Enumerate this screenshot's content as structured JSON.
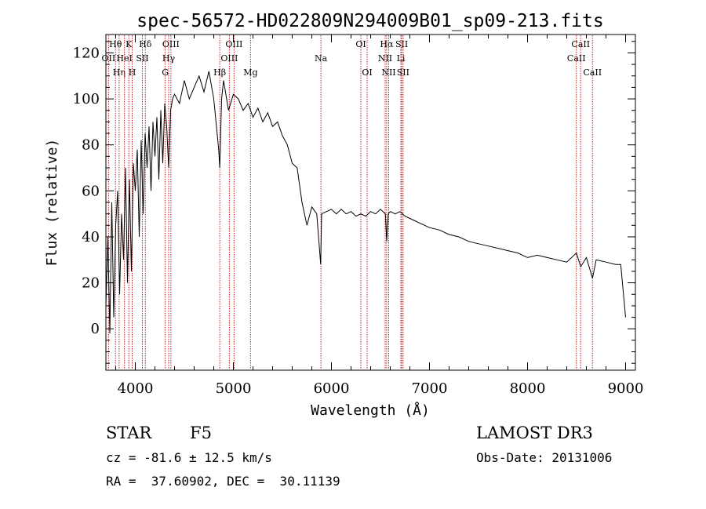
{
  "chart_data": {
    "type": "line",
    "title": "spec-56572-HD022809N294009B01_sp09-213.fits",
    "xlabel": "Wavelength (Å)",
    "ylabel": "Flux (relative)",
    "xlim": [
      3700,
      9100
    ],
    "ylim": [
      -18,
      128
    ],
    "xticks": [
      4000,
      5000,
      6000,
      7000,
      8000,
      9000
    ],
    "yticks": [
      0,
      20,
      40,
      60,
      80,
      100,
      120
    ],
    "xtick_labels": [
      "4000",
      "5000",
      "6000",
      "7000",
      "8000",
      "9000"
    ],
    "ytick_labels": [
      "0",
      "20",
      "40",
      "60",
      "80",
      "100",
      "120"
    ],
    "series": [
      {
        "name": "spectrum",
        "x": [
          3700,
          3720,
          3740,
          3760,
          3780,
          3800,
          3820,
          3840,
          3860,
          3880,
          3900,
          3920,
          3940,
          3960,
          3980,
          4000,
          4020,
          4040,
          4060,
          4080,
          4100,
          4120,
          4140,
          4160,
          4180,
          4200,
          4220,
          4240,
          4260,
          4280,
          4300,
          4320,
          4340,
          4360,
          4380,
          4400,
          4450,
          4500,
          4550,
          4600,
          4650,
          4700,
          4750,
          4800,
          4850,
          4861,
          4880,
          4900,
          4950,
          5000,
          5050,
          5100,
          5150,
          5200,
          5250,
          5300,
          5350,
          5400,
          5450,
          5500,
          5550,
          5600,
          5650,
          5700,
          5750,
          5800,
          5850,
          5890,
          5900,
          5950,
          6000,
          6050,
          6100,
          6150,
          6200,
          6250,
          6300,
          6350,
          6400,
          6450,
          6500,
          6550,
          6563,
          6580,
          6600,
          6650,
          6700,
          6750,
          6800,
          6850,
          6900,
          6950,
          7000,
          7100,
          7200,
          7300,
          7400,
          7500,
          7600,
          7700,
          7800,
          7900,
          8000,
          8100,
          8200,
          8300,
          8400,
          8498,
          8542,
          8600,
          8662,
          8700,
          8800,
          8900,
          8950,
          9000
        ],
        "values": [
          10,
          40,
          -2,
          55,
          5,
          45,
          60,
          15,
          50,
          30,
          70,
          20,
          65,
          25,
          72,
          60,
          78,
          40,
          82,
          50,
          85,
          70,
          88,
          60,
          90,
          75,
          92,
          65,
          95,
          72,
          98,
          88,
          70,
          95,
          100,
          102,
          98,
          108,
          100,
          105,
          110,
          103,
          112,
          100,
          78,
          70,
          100,
          108,
          95,
          102,
          100,
          95,
          98,
          92,
          96,
          90,
          94,
          88,
          90,
          84,
          80,
          72,
          70,
          55,
          45,
          53,
          50,
          28,
          50,
          51,
          52,
          50,
          52,
          50,
          51,
          49,
          50,
          49,
          51,
          50,
          52,
          50,
          38,
          50,
          51,
          50,
          51,
          49,
          48,
          47,
          46,
          45,
          44,
          43,
          41,
          40,
          38,
          37,
          36,
          35,
          34,
          33,
          31,
          32,
          31,
          30,
          29,
          33,
          27,
          31,
          22,
          30,
          29,
          28,
          28,
          5
        ]
      }
    ],
    "lines": [
      {
        "label": "Hθ",
        "wavelength": 3798,
        "row": 1
      },
      {
        "label": "OII",
        "wavelength": 3727,
        "row": 2
      },
      {
        "label": "Hη",
        "wavelength": 3835,
        "row": 3
      },
      {
        "label": "K",
        "wavelength": 3934,
        "row": 1
      },
      {
        "label": "HeI",
        "wavelength": 3889,
        "row": 2
      },
      {
        "label": "H",
        "wavelength": 3968,
        "row": 3
      },
      {
        "label": "Hδ",
        "wavelength": 4102,
        "row": 1
      },
      {
        "label": "SII",
        "wavelength": 4072,
        "row": 2
      },
      {
        "label": "OIII",
        "wavelength": 4363,
        "row": 1
      },
      {
        "label": "Hγ",
        "wavelength": 4340,
        "row": 2
      },
      {
        "label": "G",
        "wavelength": 4305,
        "row": 3
      },
      {
        "label": "OIII",
        "wavelength": 5007,
        "row": 1
      },
      {
        "label": "OIII",
        "wavelength": 4959,
        "row": 2
      },
      {
        "label": "Hβ",
        "wavelength": 4861,
        "row": 3
      },
      {
        "label": "Mg",
        "wavelength": 5175,
        "row": 3
      },
      {
        "label": "Na",
        "wavelength": 5893,
        "row": 2
      },
      {
        "label": "OI",
        "wavelength": 6300,
        "row": 1
      },
      {
        "label": "OI",
        "wavelength": 6364,
        "row": 3
      },
      {
        "label": "Hα",
        "wavelength": 6563,
        "row": 1
      },
      {
        "label": "NII",
        "wavelength": 6548,
        "row": 2
      },
      {
        "label": "NII",
        "wavelength": 6584,
        "row": 3
      },
      {
        "label": "SII",
        "wavelength": 6717,
        "row": 1
      },
      {
        "label": "Li",
        "wavelength": 6708,
        "row": 2
      },
      {
        "label": "SII",
        "wavelength": 6731,
        "row": 3
      },
      {
        "label": "CaII",
        "wavelength": 8542,
        "row": 1
      },
      {
        "label": "CaII",
        "wavelength": 8498,
        "row": 2
      },
      {
        "label": "CaII",
        "wavelength": 8662,
        "row": 3
      }
    ]
  },
  "info": {
    "object_type": "STAR",
    "subclass": "F5",
    "survey": "LAMOST DR3",
    "cz": "cz = -81.6 ± 12.5 km/s",
    "obs_date": "Obs-Date: 20131006",
    "coords": "RA =  37.60902, DEC =  30.11139"
  }
}
